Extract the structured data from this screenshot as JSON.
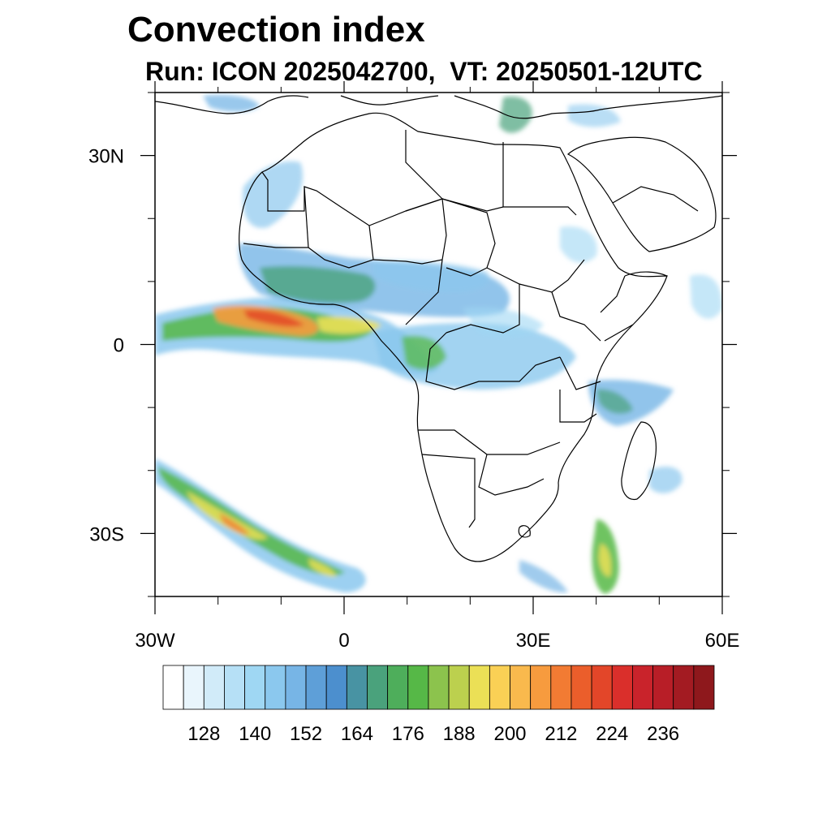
{
  "title": "Convection index",
  "subtitle": "Run: ICON 2025042700,  VT: 20250501-12UTC",
  "map": {
    "extent": {
      "lon": [
        -30,
        60
      ],
      "lat": [
        -40,
        40
      ]
    },
    "lat_ticks": [
      {
        "value": 30,
        "label": "30N"
      },
      {
        "value": 0,
        "label": "0"
      },
      {
        "value": -30,
        "label": "30S"
      }
    ],
    "lon_ticks": [
      {
        "value": -30,
        "label": "30W"
      },
      {
        "value": 0,
        "label": "0"
      },
      {
        "value": 30,
        "label": "30E"
      },
      {
        "value": 60,
        "label": "60E"
      }
    ],
    "minor_lat_ticks": [
      40,
      20,
      10,
      -10,
      -20,
      -40
    ],
    "minor_lon_ticks": [
      -20,
      -10,
      10,
      20,
      40,
      50
    ]
  },
  "colorbar": {
    "colors": [
      "#ffffff",
      "#e9f5fc",
      "#d1ebf9",
      "#b6e0f6",
      "#9fd7f3",
      "#8bc8ee",
      "#77b5e6",
      "#5e9fd8",
      "#4c8fce",
      "#4893a3",
      "#4aa27c",
      "#4eae5b",
      "#56b847",
      "#8cc34d",
      "#bcd04e",
      "#ebe056",
      "#fad055",
      "#f9b94d",
      "#f79b3e",
      "#f27b33",
      "#eb5e2b",
      "#e34629",
      "#da2f2b",
      "#c9232b",
      "#b81e27",
      "#a31b22",
      "#8e181c"
    ],
    "labels": [
      "128",
      "140",
      "152",
      "164",
      "176",
      "188",
      "200",
      "212",
      "224",
      "236"
    ]
  }
}
